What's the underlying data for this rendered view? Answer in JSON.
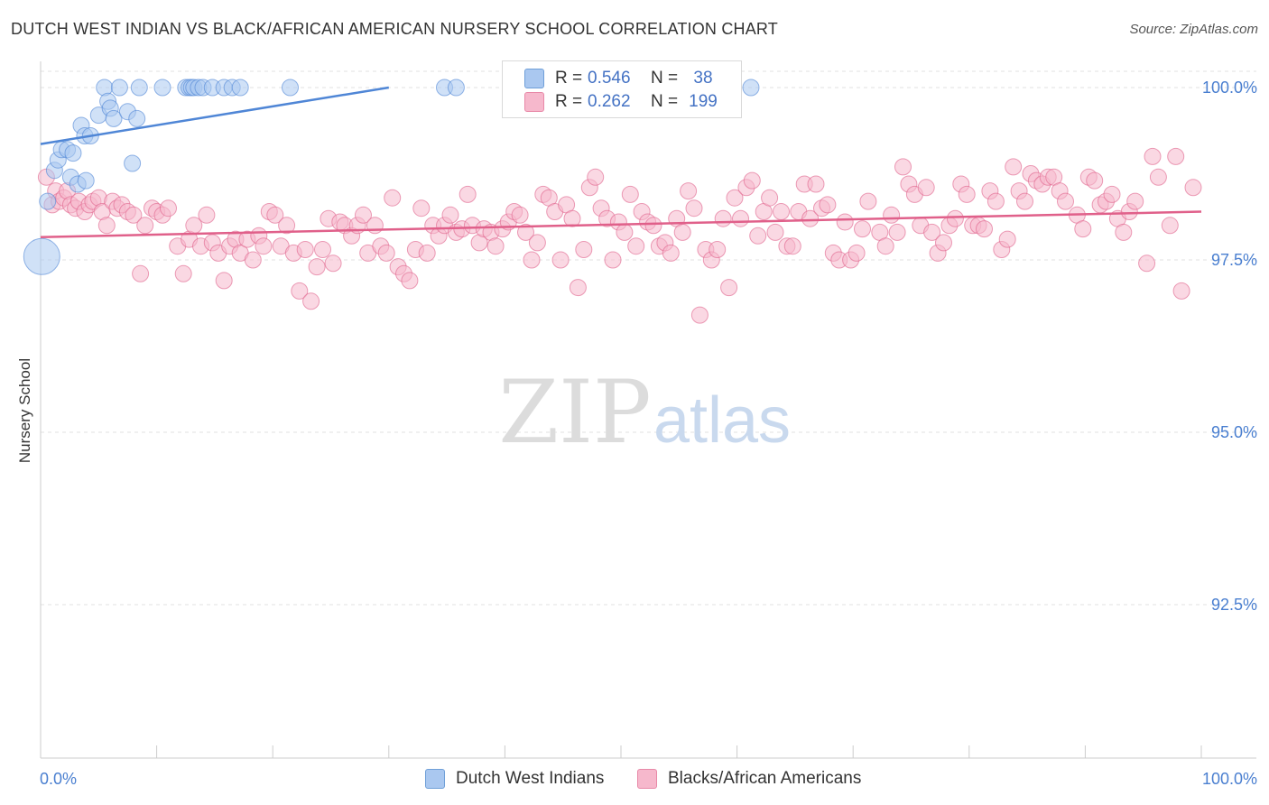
{
  "header": {
    "title": "DUTCH WEST INDIAN VS BLACK/AFRICAN AMERICAN NURSERY SCHOOL CORRELATION CHART",
    "source": "Source: ZipAtlas.com"
  },
  "watermark": {
    "zip": "ZIP",
    "atlas": "atlas"
  },
  "legend": {
    "r_label": "R =",
    "n_label": "N =",
    "rows": [
      {
        "r": "0.546",
        "n": "38",
        "fill": "#aac8f0",
        "stroke": "#6f9fd8"
      },
      {
        "r": "0.262",
        "n": "199",
        "fill": "#f6b8cc",
        "stroke": "#e889a8"
      }
    ]
  },
  "bottom_legend": {
    "items": [
      {
        "label": "Dutch West Indians",
        "fill": "#aac8f0",
        "stroke": "#6f9fd8"
      },
      {
        "label": "Blacks/African Americans",
        "fill": "#f6b8cc",
        "stroke": "#e889a8"
      }
    ]
  },
  "chart_data": {
    "type": "scatter",
    "title": "DUTCH WEST INDIAN VS BLACK/AFRICAN AMERICAN NURSERY SCHOOL CORRELATION CHART",
    "xlabel": "",
    "ylabel": "Nursery School",
    "xlim": [
      0,
      100
    ],
    "ylim": [
      90.0,
      100.2
    ],
    "x_tick_labels": [
      "0.0%",
      "100.0%"
    ],
    "y_ticks": [
      100.0,
      97.5,
      95.0,
      92.5
    ],
    "y_tick_labels": [
      "100.0%",
      "97.5%",
      "95.0%",
      "92.5%"
    ],
    "grid": true,
    "legend_position": "top-center",
    "series": [
      {
        "name": "Dutch West Indians",
        "color": "#4f86d6",
        "fill": "#aac8f0",
        "trend": {
          "x": [
            0,
            30
          ],
          "y": [
            99.18,
            100.0
          ]
        },
        "points": [
          [
            0.6,
            98.35
          ],
          [
            1.2,
            98.8
          ],
          [
            1.5,
            98.95
          ],
          [
            1.8,
            99.1
          ],
          [
            2.3,
            99.1
          ],
          [
            2.6,
            98.7
          ],
          [
            2.8,
            99.05
          ],
          [
            3.2,
            98.6
          ],
          [
            3.5,
            99.45
          ],
          [
            3.8,
            99.3
          ],
          [
            3.9,
            98.65
          ],
          [
            4.3,
            99.3
          ],
          [
            5.0,
            99.6
          ],
          [
            5.5,
            100.0
          ],
          [
            5.8,
            99.8
          ],
          [
            6.0,
            99.7
          ],
          [
            6.3,
            99.55
          ],
          [
            6.8,
            100.0
          ],
          [
            7.5,
            99.65
          ],
          [
            7.9,
            98.9
          ],
          [
            8.3,
            99.55
          ],
          [
            8.5,
            100.0
          ],
          [
            10.5,
            100.0
          ],
          [
            12.5,
            100.0
          ],
          [
            12.8,
            100.0
          ],
          [
            13.0,
            100.0
          ],
          [
            13.2,
            100.0
          ],
          [
            13.6,
            100.0
          ],
          [
            14.0,
            100.0
          ],
          [
            14.8,
            100.0
          ],
          [
            15.8,
            100.0
          ],
          [
            16.5,
            100.0
          ],
          [
            17.2,
            100.0
          ],
          [
            21.5,
            100.0
          ],
          [
            34.8,
            100.0
          ],
          [
            35.8,
            100.0
          ],
          [
            61.2,
            100.0
          ],
          [
            0.1,
            97.55
          ]
        ]
      },
      {
        "name": "Blacks/African Americans",
        "color": "#e0608a",
        "fill": "#f6b8cc",
        "trend": {
          "x": [
            0,
            100
          ],
          "y": [
            97.83,
            98.2
          ]
        },
        "points": [
          [
            0.5,
            98.7
          ],
          [
            1.0,
            98.3
          ],
          [
            1.3,
            98.5
          ],
          [
            1.6,
            98.35
          ],
          [
            2.0,
            98.4
          ],
          [
            2.3,
            98.5
          ],
          [
            2.6,
            98.3
          ],
          [
            3.0,
            98.25
          ],
          [
            3.3,
            98.35
          ],
          [
            3.8,
            98.2
          ],
          [
            4.2,
            98.3
          ],
          [
            4.5,
            98.35
          ],
          [
            5.0,
            98.4
          ],
          [
            5.3,
            98.2
          ],
          [
            5.7,
            98.0
          ],
          [
            6.2,
            98.35
          ],
          [
            6.6,
            98.25
          ],
          [
            7.0,
            98.3
          ],
          [
            7.5,
            98.2
          ],
          [
            8.0,
            98.15
          ],
          [
            8.6,
            97.3
          ],
          [
            9.0,
            98.0
          ],
          [
            9.6,
            98.25
          ],
          [
            10.0,
            98.2
          ],
          [
            10.5,
            98.15
          ],
          [
            11.0,
            98.25
          ],
          [
            11.8,
            97.7
          ],
          [
            12.3,
            97.3
          ],
          [
            12.8,
            97.8
          ],
          [
            13.2,
            98.0
          ],
          [
            13.8,
            97.7
          ],
          [
            14.3,
            98.15
          ],
          [
            14.8,
            97.75
          ],
          [
            15.3,
            97.6
          ],
          [
            15.8,
            97.2
          ],
          [
            16.3,
            97.7
          ],
          [
            16.8,
            97.8
          ],
          [
            17.2,
            97.6
          ],
          [
            17.8,
            97.8
          ],
          [
            18.3,
            97.5
          ],
          [
            18.8,
            97.85
          ],
          [
            19.2,
            97.7
          ],
          [
            19.7,
            98.2
          ],
          [
            20.2,
            98.15
          ],
          [
            20.7,
            97.7
          ],
          [
            21.2,
            98.0
          ],
          [
            21.8,
            97.6
          ],
          [
            22.3,
            97.05
          ],
          [
            22.8,
            97.65
          ],
          [
            23.3,
            96.9
          ],
          [
            23.8,
            97.4
          ],
          [
            24.3,
            97.65
          ],
          [
            24.8,
            98.1
          ],
          [
            25.2,
            97.45
          ],
          [
            25.8,
            98.05
          ],
          [
            26.2,
            98.0
          ],
          [
            26.8,
            97.85
          ],
          [
            27.3,
            98.0
          ],
          [
            27.8,
            98.15
          ],
          [
            28.2,
            97.6
          ],
          [
            28.8,
            98.0
          ],
          [
            29.3,
            97.7
          ],
          [
            29.8,
            97.6
          ],
          [
            30.3,
            98.4
          ],
          [
            30.8,
            97.4
          ],
          [
            31.3,
            97.3
          ],
          [
            31.8,
            97.2
          ],
          [
            32.3,
            97.65
          ],
          [
            32.8,
            98.25
          ],
          [
            33.3,
            97.6
          ],
          [
            33.8,
            98.0
          ],
          [
            34.3,
            97.85
          ],
          [
            34.8,
            98.0
          ],
          [
            35.3,
            98.15
          ],
          [
            35.8,
            97.9
          ],
          [
            36.3,
            97.95
          ],
          [
            36.8,
            98.45
          ],
          [
            37.2,
            98.0
          ],
          [
            37.8,
            97.75
          ],
          [
            38.2,
            97.95
          ],
          [
            38.8,
            97.9
          ],
          [
            39.2,
            97.7
          ],
          [
            39.8,
            97.95
          ],
          [
            40.3,
            98.05
          ],
          [
            40.8,
            98.2
          ],
          [
            41.3,
            98.15
          ],
          [
            41.8,
            97.9
          ],
          [
            42.3,
            97.5
          ],
          [
            42.8,
            97.75
          ],
          [
            43.3,
            98.45
          ],
          [
            43.8,
            98.4
          ],
          [
            44.3,
            98.2
          ],
          [
            44.8,
            97.5
          ],
          [
            45.3,
            98.3
          ],
          [
            45.8,
            98.1
          ],
          [
            46.3,
            97.1
          ],
          [
            46.8,
            97.65
          ],
          [
            47.3,
            98.55
          ],
          [
            47.8,
            98.7
          ],
          [
            48.3,
            98.25
          ],
          [
            48.8,
            98.1
          ],
          [
            49.3,
            97.5
          ],
          [
            49.8,
            98.05
          ],
          [
            50.3,
            97.9
          ],
          [
            50.8,
            98.45
          ],
          [
            51.3,
            97.7
          ],
          [
            51.8,
            98.2
          ],
          [
            52.3,
            98.05
          ],
          [
            52.8,
            98.0
          ],
          [
            53.3,
            97.7
          ],
          [
            53.8,
            97.75
          ],
          [
            54.3,
            97.6
          ],
          [
            54.8,
            98.1
          ],
          [
            55.3,
            97.9
          ],
          [
            55.8,
            98.5
          ],
          [
            56.3,
            98.25
          ],
          [
            56.8,
            96.7
          ],
          [
            57.3,
            97.65
          ],
          [
            57.8,
            97.5
          ],
          [
            58.3,
            97.65
          ],
          [
            58.8,
            98.1
          ],
          [
            59.3,
            97.1
          ],
          [
            59.8,
            98.4
          ],
          [
            60.3,
            98.1
          ],
          [
            60.8,
            98.55
          ],
          [
            61.3,
            98.65
          ],
          [
            61.8,
            97.85
          ],
          [
            62.3,
            98.2
          ],
          [
            62.8,
            98.4
          ],
          [
            63.3,
            97.9
          ],
          [
            63.8,
            98.2
          ],
          [
            64.3,
            97.7
          ],
          [
            64.8,
            97.7
          ],
          [
            65.3,
            98.2
          ],
          [
            65.8,
            98.6
          ],
          [
            66.3,
            98.1
          ],
          [
            66.8,
            98.6
          ],
          [
            67.3,
            98.25
          ],
          [
            67.8,
            98.3
          ],
          [
            68.3,
            97.6
          ],
          [
            68.8,
            97.5
          ],
          [
            69.3,
            98.05
          ],
          [
            69.8,
            97.5
          ],
          [
            70.3,
            97.6
          ],
          [
            70.8,
            97.95
          ],
          [
            71.3,
            98.35
          ],
          [
            72.3,
            97.9
          ],
          [
            72.8,
            97.7
          ],
          [
            73.3,
            98.15
          ],
          [
            73.8,
            97.9
          ],
          [
            74.3,
            98.85
          ],
          [
            74.8,
            98.6
          ],
          [
            75.3,
            98.45
          ],
          [
            75.8,
            98.0
          ],
          [
            76.3,
            98.55
          ],
          [
            76.8,
            97.9
          ],
          [
            77.3,
            97.6
          ],
          [
            77.8,
            97.75
          ],
          [
            78.3,
            98.0
          ],
          [
            78.8,
            98.1
          ],
          [
            79.3,
            98.6
          ],
          [
            79.8,
            98.45
          ],
          [
            80.3,
            98.0
          ],
          [
            80.8,
            98.0
          ],
          [
            81.3,
            97.95
          ],
          [
            81.8,
            98.5
          ],
          [
            82.3,
            98.35
          ],
          [
            82.8,
            97.65
          ],
          [
            83.3,
            97.8
          ],
          [
            83.8,
            98.85
          ],
          [
            84.3,
            98.5
          ],
          [
            84.8,
            98.35
          ],
          [
            85.3,
            98.75
          ],
          [
            85.8,
            98.65
          ],
          [
            86.3,
            98.6
          ],
          [
            86.8,
            98.7
          ],
          [
            87.3,
            98.7
          ],
          [
            87.8,
            98.5
          ],
          [
            88.3,
            98.35
          ],
          [
            89.3,
            98.15
          ],
          [
            89.8,
            97.95
          ],
          [
            90.3,
            98.7
          ],
          [
            90.8,
            98.65
          ],
          [
            91.3,
            98.3
          ],
          [
            91.8,
            98.35
          ],
          [
            92.3,
            98.45
          ],
          [
            92.8,
            98.1
          ],
          [
            93.3,
            97.9
          ],
          [
            93.8,
            98.2
          ],
          [
            94.3,
            98.35
          ],
          [
            95.3,
            97.45
          ],
          [
            95.8,
            99.0
          ],
          [
            96.3,
            98.7
          ],
          [
            97.3,
            98.0
          ],
          [
            97.8,
            99.0
          ],
          [
            98.3,
            97.05
          ],
          [
            99.3,
            98.55
          ]
        ]
      }
    ]
  }
}
